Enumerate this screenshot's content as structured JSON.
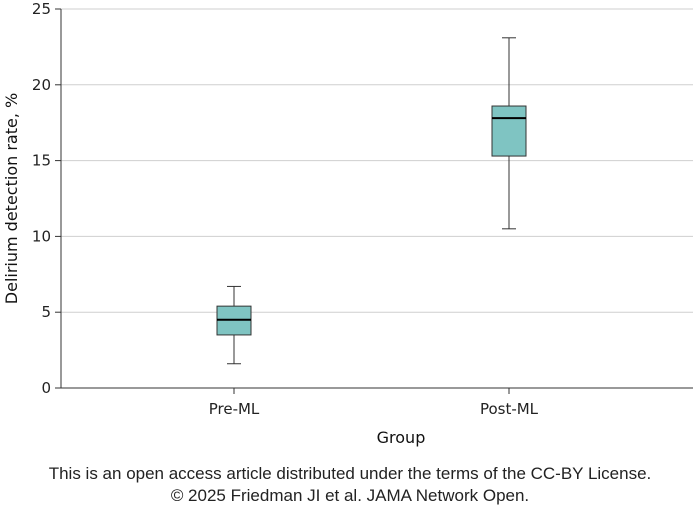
{
  "chart_data": {
    "type": "box",
    "xlabel": "Group",
    "ylabel": "Delirium detection rate, %",
    "ylim": [
      0,
      25
    ],
    "yticks": [
      0,
      5,
      10,
      15,
      20,
      25
    ],
    "grid": true,
    "categories": [
      "Pre-ML",
      "Post-ML"
    ],
    "boxes": [
      {
        "category": "Pre-ML",
        "whisker_low": 1.6,
        "q1": 3.5,
        "median": 4.5,
        "q3": 5.4,
        "whisker_high": 6.7
      },
      {
        "category": "Post-ML",
        "whisker_low": 10.5,
        "q1": 15.3,
        "median": 17.8,
        "q3": 18.6,
        "whisker_high": 23.1
      }
    ],
    "box_color": "#7fc4c2"
  },
  "footer": {
    "line1": "This is an open access article distributed under the terms of the CC-BY License.",
    "line2": "© 2025 Friedman JI et al. JAMA Network Open."
  }
}
